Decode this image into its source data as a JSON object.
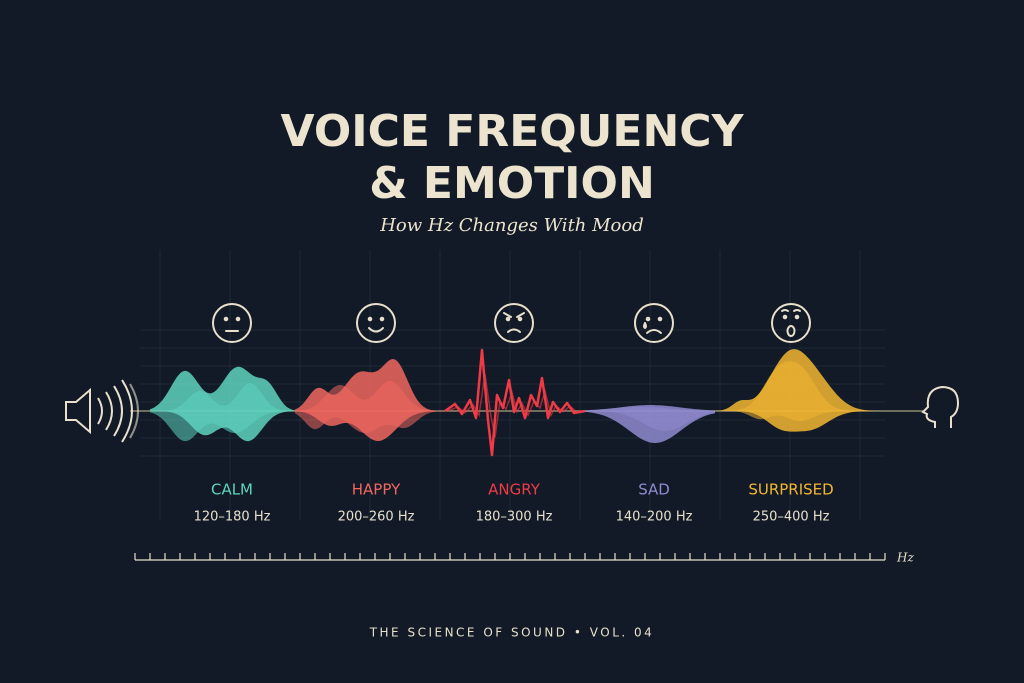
{
  "header": {
    "title_lines": [
      "VOICE FREQUENCY",
      "& EMOTION"
    ],
    "subtitle": "How Hz Changes With Mood"
  },
  "emotions": [
    {
      "label": "CALM",
      "range": "120–180 Hz",
      "color": "#5fd3c0"
    },
    {
      "label": "HAPPY",
      "range": "200–260 Hz",
      "color": "#f0675f"
    },
    {
      "label": "ANGRY",
      "range": "180–300 Hz",
      "color": "#ef3b45"
    },
    {
      "label": "SAD",
      "range": "140–200 Hz",
      "color": "#8f8bd0"
    },
    {
      "label": "SURPRISED",
      "range": "250–400 Hz",
      "color": "#f2b731"
    }
  ],
  "axis": {
    "unit": "Hz"
  },
  "footer": "THE SCIENCE OF SOUND • VOL. 04"
}
